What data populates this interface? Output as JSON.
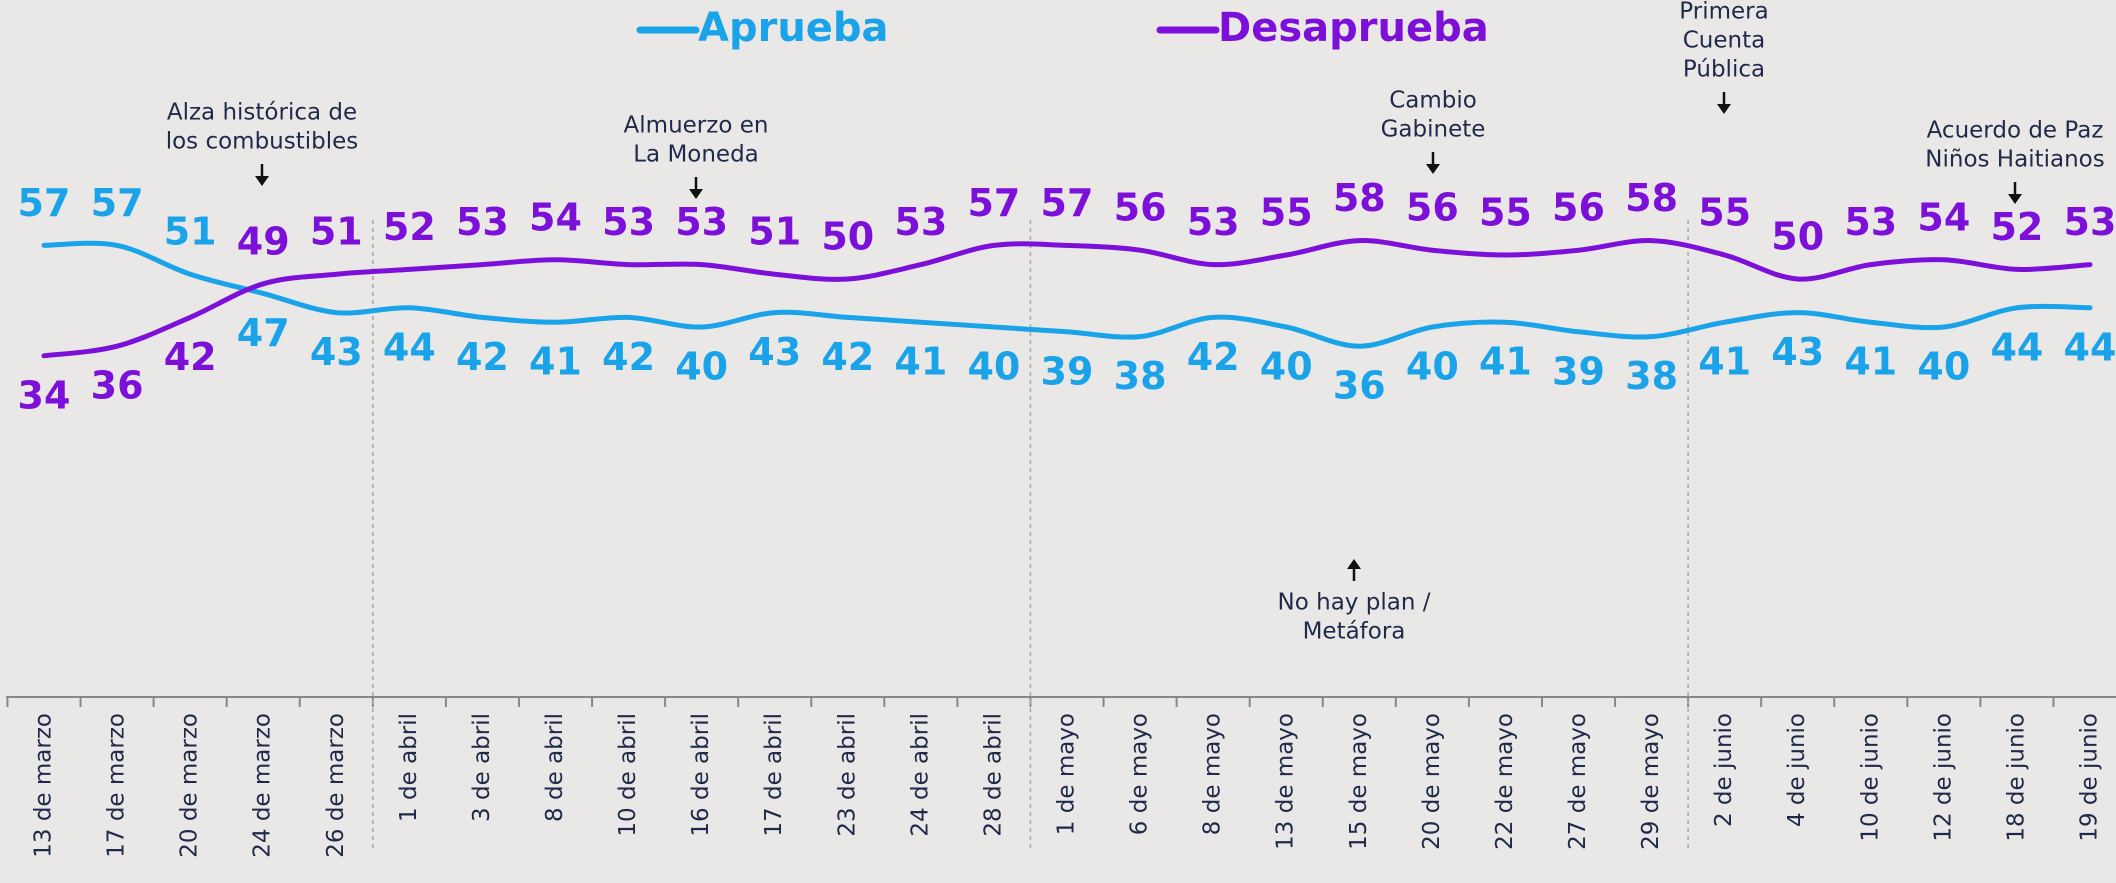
{
  "chart_data": {
    "type": "line",
    "categories": [
      "13 de marzo",
      "17 de marzo",
      "20 de marzo",
      "24 de marzo",
      "26 de marzo",
      "1 de abril",
      "3 de abril",
      "8 de abril",
      "10 de abril",
      "16 de abril",
      "17 de abril",
      "23 de abril",
      "24 de abril",
      "28 de abril",
      "1 de mayo",
      "6 de mayo",
      "8 de mayo",
      "13 de mayo",
      "15 de mayo",
      "20 de mayo",
      "22 de mayo",
      "27 de mayo",
      "29 de mayo",
      "2 de junio",
      "4 de junio",
      "10 de junio",
      "12 de junio",
      "18 de junio",
      "19 de junio"
    ],
    "series": [
      {
        "name": "Aprueba",
        "color": "#1aa3e8",
        "values": [
          57,
          57,
          51,
          47,
          43,
          44,
          42,
          41,
          42,
          40,
          43,
          42,
          41,
          40,
          39,
          38,
          42,
          40,
          36,
          40,
          41,
          39,
          38,
          41,
          43,
          41,
          40,
          44,
          44
        ]
      },
      {
        "name": "Desaprueba",
        "color": "#7d10d8",
        "values": [
          34,
          36,
          42,
          49,
          51,
          52,
          53,
          54,
          53,
          53,
          51,
          50,
          53,
          57,
          57,
          56,
          53,
          55,
          58,
          56,
          55,
          56,
          58,
          55,
          50,
          53,
          54,
          52,
          53
        ]
      }
    ],
    "ylim": [
      20,
      70
    ],
    "annotations": [
      {
        "lines": [
          "Alza histórica de",
          "los combustibles"
        ]
      },
      {
        "lines": [
          "Almuerzo en",
          "La Moneda"
        ]
      },
      {
        "lines": [
          "Cambio",
          "Gabinete"
        ]
      },
      {
        "lines": [
          "Primera",
          "Cuenta",
          "Pública"
        ]
      },
      {
        "lines": [
          "Acuerdo de Paz",
          "Niños Haitianos"
        ]
      },
      {
        "lines": [
          "No hay plan /",
          "Metáfora"
        ]
      }
    ]
  }
}
